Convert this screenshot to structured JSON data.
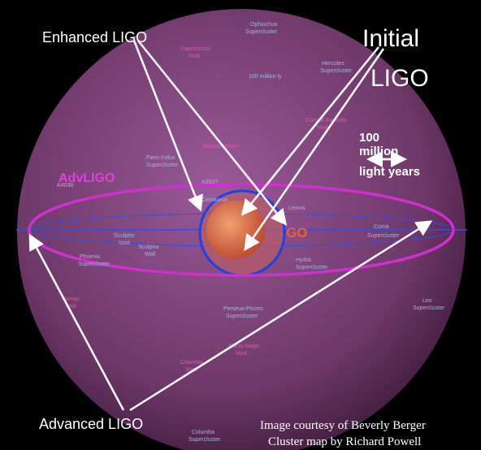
{
  "labels": {
    "enhanced": "Enhanced LIGO",
    "initial_1": "Initial",
    "initial_2": "LIGO",
    "scale_1": "100",
    "scale_2": "million",
    "scale_3": "light years",
    "advligo": "AdvLIGO",
    "ligo_hidden": "GO",
    "advanced": "Advanced LIGO",
    "credit_1": "Image courtesy of Beverly Berger",
    "credit_2": "Cluster map by Richard Powell"
  },
  "map_labels": [
    "Ophiuchus",
    "Supercluster",
    "Hercules",
    "Supercluster",
    "Capricornus",
    "Void",
    "100 million ly",
    "Corona Borealis",
    "Void",
    "Pavo-Indus",
    "Supercluster",
    "Microscopium",
    "A3627",
    "A4038",
    "Sculptor",
    "Sculptor",
    "Void",
    "Wall",
    "Phoenix",
    "Supercluster",
    "Hydra",
    "Supercluster",
    "Coma",
    "Supercluster",
    "Leo",
    "Supercluster",
    "Perseus-Pisces",
    "Supercluster",
    "Fornax",
    "Void",
    "Canis Major",
    "Void",
    "Columba",
    "Void",
    "Columba",
    "Supercluster",
    "Centaurus",
    "Leonis"
  ]
}
